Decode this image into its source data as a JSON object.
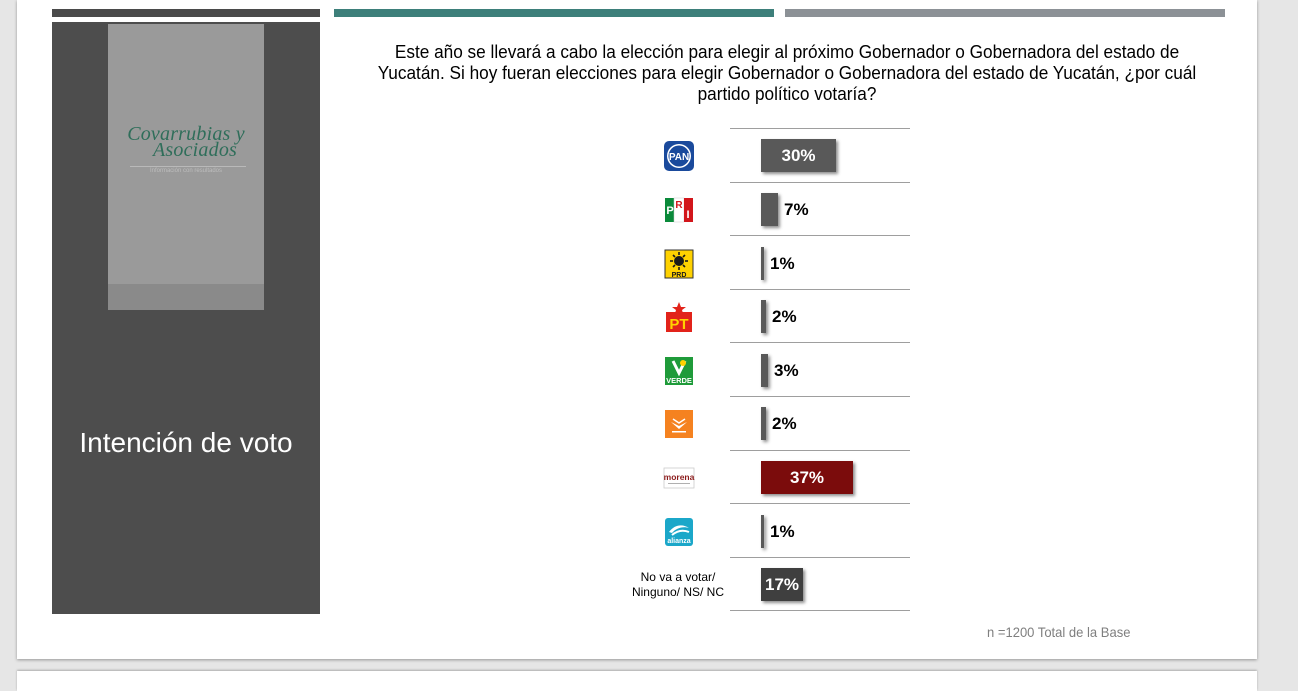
{
  "slide": {
    "panel_title": "Intención de voto",
    "logo": {
      "name_line1": "Covarrubias y",
      "name_line2": "Asociados",
      "tagline": "Información con resultados"
    },
    "question": "Este año se llevará a cabo la elección para elegir al próximo Gobernador o Gobernadora del estado de Yucatán. Si hoy fueran elecciones para elegir Gobernador o Gobernadora del estado de Yucatán, ¿por cuál partido político votaría?",
    "footnote": "n =1200 Total de la Base"
  },
  "chart_data": {
    "type": "bar",
    "orientation": "horizontal",
    "categories": [
      "PAN",
      "PRI",
      "PRD",
      "PT",
      "VERDE",
      "Movimiento Ciudadano",
      "morena",
      "alianza",
      "No va a votar/ Ninguno/ NS/ NC"
    ],
    "values": [
      30,
      7,
      1,
      2,
      3,
      2,
      37,
      1,
      17
    ],
    "labels": [
      "30%",
      "7%",
      "1%",
      "2%",
      "3%",
      "2%",
      "37%",
      "1%",
      "17%"
    ],
    "bar_colors": [
      "#595959",
      "#595959",
      "#595959",
      "#595959",
      "#595959",
      "#595959",
      "#7b0c0c",
      "#595959",
      "#3f3f3f"
    ],
    "category_icons": [
      "pan-logo-icon",
      "pri-logo-icon",
      "prd-logo-icon",
      "pt-logo-icon",
      "verde-logo-icon",
      "movimiento-ciudadano-logo-icon",
      "morena-logo-icon",
      "nueva-alianza-logo-icon",
      "text"
    ],
    "icon_texts": {
      "PAN": "PAN",
      "PRI": "PRI",
      "PRD": "PRD",
      "PT": "PT",
      "VERDE": "VERDE",
      "morena": "morena",
      "alianza": "alianza"
    },
    "xlim": [
      0,
      37
    ],
    "grid": false,
    "legend": "none"
  },
  "colors": {
    "accent_teal": "#3d7f7a",
    "panel_dark": "#4d4d4d",
    "morena_red": "#7b0c0c"
  }
}
